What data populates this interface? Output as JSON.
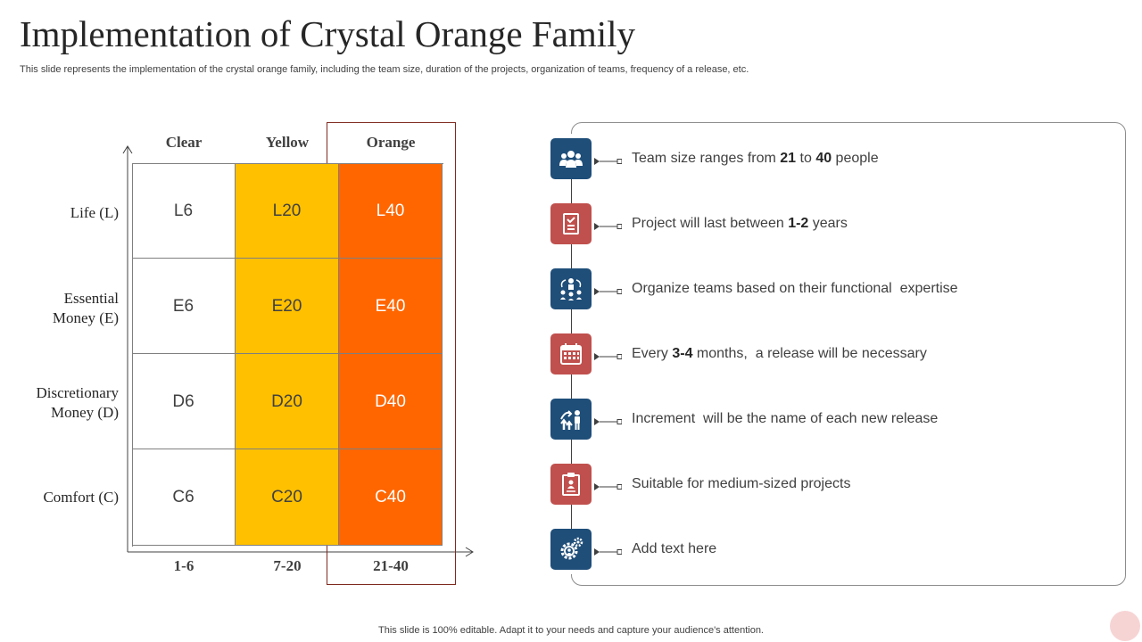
{
  "title": "Implementation of Crystal Orange Family",
  "subtitle": "This slide represents the implementation of the crystal orange family, including the team size, duration of the projects, organization of teams, frequency of a release, etc.",
  "grid": {
    "columns": [
      "Clear",
      "Yellow",
      "Orange"
    ],
    "rows": [
      {
        "label": "Life (L)",
        "cells": [
          "L6",
          "L20",
          "L40"
        ]
      },
      {
        "label": "Essential Money (E)",
        "cells": [
          "E6",
          "E20",
          "E40"
        ]
      },
      {
        "label": "Discretionary Money (D)",
        "cells": [
          "D6",
          "D20",
          "D40"
        ]
      },
      {
        "label": "Comfort (C)",
        "cells": [
          "C6",
          "C20",
          "C40"
        ]
      }
    ],
    "x_labels": [
      "1-6",
      "7-20",
      "21-40"
    ],
    "colors": {
      "clear": "#ffffff",
      "yellow": "#ffc000",
      "orange": "#ff6600"
    }
  },
  "items": [
    {
      "icon": "team-icon",
      "color": "blue",
      "parts": [
        [
          "Team size ranges from ",
          false
        ],
        [
          "21",
          true
        ],
        [
          " to ",
          false
        ],
        [
          "40",
          true
        ],
        [
          " people",
          false
        ]
      ]
    },
    {
      "icon": "document-icon",
      "color": "red",
      "parts": [
        [
          "Project will last between ",
          false
        ],
        [
          "1-2",
          true
        ],
        [
          " years",
          false
        ]
      ]
    },
    {
      "icon": "organization-icon",
      "color": "blue",
      "parts": [
        [
          "Organize teams based on their functional  expertise",
          false
        ]
      ]
    },
    {
      "icon": "calendar-icon",
      "color": "red",
      "parts": [
        [
          "Every ",
          false
        ],
        [
          "3-4",
          true
        ],
        [
          " months,  a release will be necessary",
          false
        ]
      ]
    },
    {
      "icon": "growth-icon",
      "color": "blue",
      "parts": [
        [
          "Increment  will be the name of each new release",
          false
        ]
      ]
    },
    {
      "icon": "clipboard-icon",
      "color": "red",
      "parts": [
        [
          "Suitable for medium-sized projects",
          false
        ]
      ]
    },
    {
      "icon": "gears-icon",
      "color": "blue",
      "parts": [
        [
          "Add text here",
          false
        ]
      ]
    }
  ],
  "footer": "This slide is 100% editable. Adapt it to your needs and capture your audience's attention."
}
